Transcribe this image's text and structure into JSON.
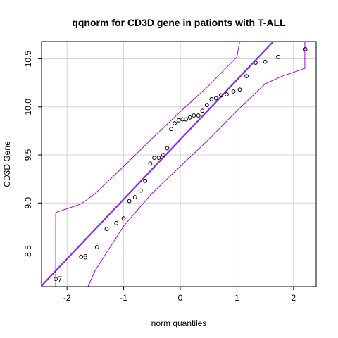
{
  "chart_data": {
    "type": "scatter",
    "title": "qqnorm for CD3D gene in pationts with T-ALL",
    "xlabel": "norm quantiles",
    "ylabel": "CD3D Gene",
    "xlim": [
      -2.45,
      2.4
    ],
    "ylim": [
      8.13,
      10.68
    ],
    "xticks": [
      -2,
      -1,
      0,
      1,
      2
    ],
    "yticks": [
      8.5,
      9.0,
      9.5,
      10.0,
      10.5
    ],
    "grid": true,
    "points": [
      {
        "x": -2.2,
        "y": 8.21,
        "label": "7"
      },
      {
        "x": -1.75,
        "y": 8.44,
        "label": "6"
      },
      {
        "x": -1.47,
        "y": 8.54
      },
      {
        "x": -1.3,
        "y": 8.73
      },
      {
        "x": -1.13,
        "y": 8.79
      },
      {
        "x": -1.0,
        "y": 8.84
      },
      {
        "x": -0.9,
        "y": 9.02
      },
      {
        "x": -0.8,
        "y": 9.06
      },
      {
        "x": -0.7,
        "y": 9.13
      },
      {
        "x": -0.62,
        "y": 9.23
      },
      {
        "x": -0.53,
        "y": 9.41
      },
      {
        "x": -0.46,
        "y": 9.47
      },
      {
        "x": -0.38,
        "y": 9.47
      },
      {
        "x": -0.3,
        "y": 9.5
      },
      {
        "x": -0.23,
        "y": 9.57
      },
      {
        "x": -0.16,
        "y": 9.77
      },
      {
        "x": -0.1,
        "y": 9.83
      },
      {
        "x": -0.03,
        "y": 9.86
      },
      {
        "x": 0.04,
        "y": 9.87
      },
      {
        "x": 0.1,
        "y": 9.87
      },
      {
        "x": 0.17,
        "y": 9.89
      },
      {
        "x": 0.24,
        "y": 9.91
      },
      {
        "x": 0.32,
        "y": 9.91
      },
      {
        "x": 0.39,
        "y": 9.96
      },
      {
        "x": 0.47,
        "y": 10.02
      },
      {
        "x": 0.55,
        "y": 10.08
      },
      {
        "x": 0.63,
        "y": 10.09
      },
      {
        "x": 0.72,
        "y": 10.12
      },
      {
        "x": 0.82,
        "y": 10.13
      },
      {
        "x": 0.94,
        "y": 10.16
      },
      {
        "x": 1.05,
        "y": 10.18
      },
      {
        "x": 1.17,
        "y": 10.32
      },
      {
        "x": 1.33,
        "y": 10.46
      },
      {
        "x": 1.5,
        "y": 10.47
      },
      {
        "x": 1.73,
        "y": 10.52
      },
      {
        "x": 2.21,
        "y": 10.6
      }
    ],
    "reference_line": {
      "intercept": 9.66,
      "slope": 0.621,
      "color": "#8a2be2"
    },
    "confidence_band": {
      "color": "#aa00dd",
      "upper": [
        [
          -2.2,
          8.9
        ],
        [
          -1.75,
          8.99
        ],
        [
          -1.5,
          9.1
        ],
        [
          -1.0,
          9.38
        ],
        [
          -0.5,
          9.67
        ],
        [
          0.0,
          9.95
        ],
        [
          0.5,
          10.22
        ],
        [
          1.0,
          10.52
        ],
        [
          1.05,
          10.68
        ]
      ],
      "lower": [
        [
          -1.63,
          8.13
        ],
        [
          -1.5,
          8.3
        ],
        [
          -1.0,
          8.76
        ],
        [
          -0.5,
          9.1
        ],
        [
          0.0,
          9.38
        ],
        [
          0.5,
          9.66
        ],
        [
          1.0,
          9.96
        ],
        [
          1.5,
          10.24
        ],
        [
          1.8,
          10.32
        ],
        [
          2.2,
          10.4
        ],
        [
          2.2,
          10.68
        ]
      ],
      "left_cap": [
        [
          -2.2,
          8.13
        ],
        [
          -2.2,
          8.9
        ]
      ]
    }
  }
}
